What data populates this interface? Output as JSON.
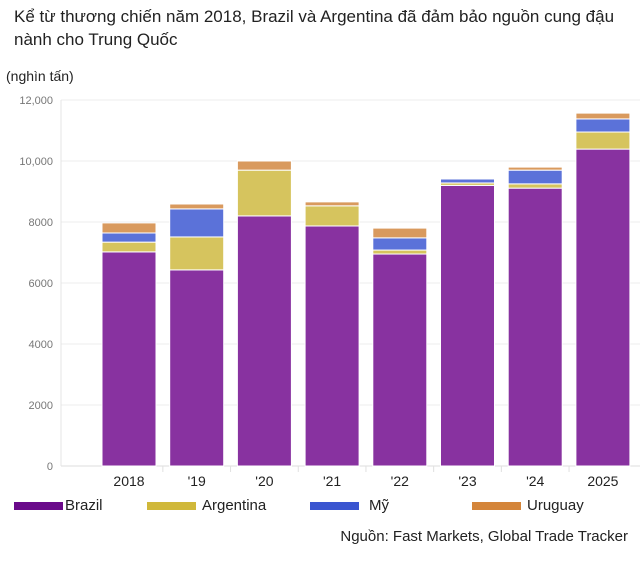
{
  "title": "Kể từ thương chiến năm 2018, Brazil và Argentina đã đảm bảo nguồn cung đậu nành cho Trung Quốc",
  "source": "Nguồn: Fast Markets, Global Trade Tracker",
  "chart_data": {
    "type": "bar",
    "stacked": true,
    "title": "Kể từ thương chiến năm 2018, Brazil và Argentina đã đảm bảo nguồn cung đậu nành cho Trung Quốc",
    "ylabel": "(nghìn tấn)",
    "xlabel": "",
    "ylim": [
      0,
      12000
    ],
    "yticks": [
      0,
      2000,
      4000,
      6000,
      8000,
      10000,
      12000
    ],
    "ytick_labels": [
      "0",
      "2000",
      "4000",
      "6000",
      "8000",
      "10,000",
      "12,000"
    ],
    "grid": true,
    "legend_position": "bottom",
    "categories": [
      "2018",
      "'19",
      "'20",
      "'21",
      "'22",
      "'23",
      "'24",
      "2025"
    ],
    "series": [
      {
        "name": "Brazil",
        "color": "#8832a0",
        "legend_color": "#6a0a8a",
        "values": [
          7020,
          6430,
          8200,
          7870,
          6950,
          9200,
          9110,
          10390
        ]
      },
      {
        "name": "Argentina",
        "color": "#d6c45e",
        "legend_color": "#d0b83a",
        "values": [
          320,
          1080,
          1500,
          660,
          130,
          80,
          140,
          560
        ]
      },
      {
        "name": "Mỹ",
        "color": "#5b72d9",
        "legend_color": "#3a55d0",
        "values": [
          300,
          920,
          0,
          0,
          400,
          130,
          450,
          430
        ]
      },
      {
        "name": "Uruguay",
        "color": "#d99a5e",
        "legend_color": "#d4853a",
        "values": [
          330,
          160,
          300,
          130,
          320,
          0,
          100,
          190
        ]
      }
    ]
  }
}
